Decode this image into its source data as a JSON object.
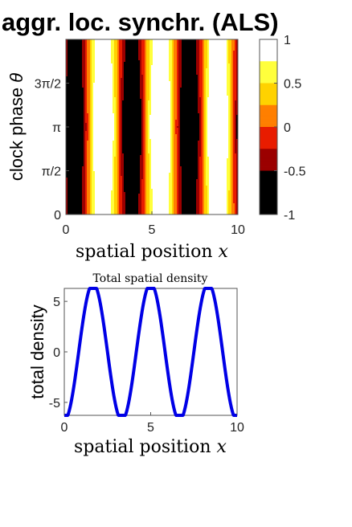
{
  "title": "aggr. loc. synchr. (ALS)",
  "chart_data": [
    {
      "type": "heatmap",
      "title": "",
      "xlabel": "spatial position",
      "xlabel_var": "x",
      "ylabel": "clock phase",
      "ylabel_var": "θ",
      "xlim": [
        0,
        10
      ],
      "ylim": [
        0,
        6.2832
      ],
      "xticks": [
        0,
        5,
        10
      ],
      "xticklabels": [
        "0",
        "5",
        "10"
      ],
      "yticks": [
        0,
        1.5708,
        3.1416,
        4.7124
      ],
      "yticklabels": [
        "0",
        "π/2",
        "π",
        "3π/2"
      ],
      "colormap": "hot",
      "levels": [
        -1,
        -0.75,
        -0.5,
        -0.25,
        0,
        0.25,
        0.5,
        0.75,
        1
      ],
      "level_colors": [
        "#000000",
        "#000000",
        "#9b0000",
        "#e81c00",
        "#ff7f00",
        "#ffd200",
        "#ffff3c",
        "#ffffff"
      ],
      "colorbar": {
        "ticks": [
          1,
          0.5,
          0,
          -0.5,
          -1
        ],
        "ticklabels": [
          "1",
          "0.5",
          "0",
          "-0.5",
          "-1"
        ]
      }
    },
    {
      "type": "line",
      "title": "Total spatial density",
      "xlabel": "spatial position",
      "xlabel_var": "x",
      "ylabel": "total density",
      "xlim": [
        0,
        10
      ],
      "ylim": [
        -6.2832,
        6.2832
      ],
      "xticks": [
        0,
        5,
        10
      ],
      "xticklabels": [
        "0",
        "5",
        "10"
      ],
      "yticks": [
        -5,
        0,
        5
      ],
      "yticklabels": [
        "-5",
        "0",
        "5"
      ],
      "series_color": "#0000e6",
      "amplitude": 6.2832,
      "x": [
        0,
        0.5,
        1,
        1.5,
        2,
        2.5,
        3,
        3.3333,
        3.5,
        4,
        4.5,
        5,
        5.5,
        6,
        6.5,
        6.6667,
        7,
        7.5,
        8,
        8.5,
        9,
        9.5,
        10
      ],
      "y": [
        -6.28,
        -3.14,
        3.14,
        6.28,
        3.14,
        -3.14,
        -6.28,
        -6.28,
        -5.44,
        0.0,
        5.44,
        6.28,
        5.44,
        0.0,
        -5.44,
        -6.28,
        -3.14,
        3.14,
        6.28,
        3.14,
        -3.14,
        -6.28,
        -6.28
      ]
    }
  ]
}
